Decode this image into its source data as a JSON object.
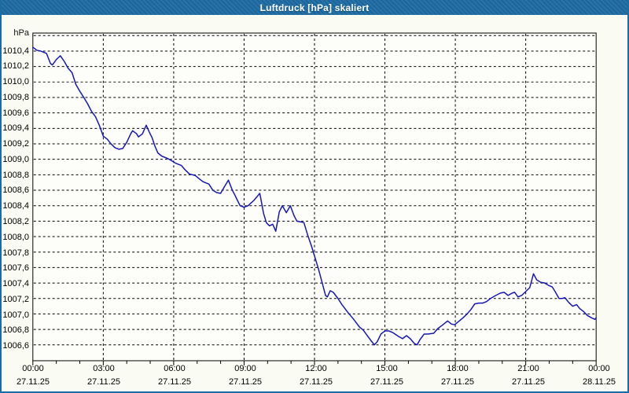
{
  "window": {
    "title": "Luftdruck [hPa] skaliert"
  },
  "colors": {
    "titlebar": "#1d6ba3",
    "window_border": "#1d6ba3",
    "window_bg": "#fafbf2",
    "plot_bg": "#fdfdfa",
    "grid": "#000000",
    "axis": "#000000",
    "curve": "#1616b6",
    "title_text": "#ffffff",
    "label_text": "#000000"
  },
  "chart_data": {
    "type": "line",
    "title": "Luftdruck [hPa] skaliert",
    "ylabel_unit": "hPa",
    "xlabel": "",
    "grid": true,
    "legend": "none",
    "xlim_hours": [
      0,
      24
    ],
    "ylim": [
      1006.395,
      1010.633
    ],
    "minor_tick_every_hours": 1,
    "y_ticks": [
      {
        "value": 1010.6,
        "label": ""
      },
      {
        "value": 1010.4,
        "label": "1010,4"
      },
      {
        "value": 1010.2,
        "label": "1010,2"
      },
      {
        "value": 1010.0,
        "label": "1010,0"
      },
      {
        "value": 1009.8,
        "label": "1009,8"
      },
      {
        "value": 1009.6,
        "label": "1009,6"
      },
      {
        "value": 1009.4,
        "label": "1009,4"
      },
      {
        "value": 1009.2,
        "label": "1009,2"
      },
      {
        "value": 1009.0,
        "label": "1009,0"
      },
      {
        "value": 1008.8,
        "label": "1008,8"
      },
      {
        "value": 1008.6,
        "label": "1008,6"
      },
      {
        "value": 1008.4,
        "label": "1008,4"
      },
      {
        "value": 1008.2,
        "label": "1008,2"
      },
      {
        "value": 1008.0,
        "label": "1008,0"
      },
      {
        "value": 1007.8,
        "label": "1007,8"
      },
      {
        "value": 1007.6,
        "label": "1007,6"
      },
      {
        "value": 1007.4,
        "label": "1007,4"
      },
      {
        "value": 1007.2,
        "label": "1007,2"
      },
      {
        "value": 1007.0,
        "label": "1007,0"
      },
      {
        "value": 1006.8,
        "label": "1006,8"
      },
      {
        "value": 1006.6,
        "label": "1006,6"
      }
    ],
    "x_ticks": [
      {
        "hour": 0,
        "time": "00:00",
        "date": "27.11.25"
      },
      {
        "hour": 3,
        "time": "03:00",
        "date": "27.11.25"
      },
      {
        "hour": 6,
        "time": "06:00",
        "date": "27.11.25"
      },
      {
        "hour": 9,
        "time": "09:00",
        "date": "27.11.25"
      },
      {
        "hour": 12,
        "time": "12:00",
        "date": "27.11.25"
      },
      {
        "hour": 15,
        "time": "15:00",
        "date": "27.11.25"
      },
      {
        "hour": 18,
        "time": "18:00",
        "date": "27.11.25"
      },
      {
        "hour": 21,
        "time": "21:00",
        "date": "27.11.25"
      },
      {
        "hour": 24,
        "time": "00:00",
        "date": "28.11.25"
      }
    ],
    "series": [
      {
        "name": "Luftdruck",
        "color": "#1616b6",
        "points": [
          [
            0.0,
            1010.45
          ],
          [
            0.17,
            1010.41
          ],
          [
            0.33,
            1010.4
          ],
          [
            0.58,
            1010.37
          ],
          [
            0.75,
            1010.24
          ],
          [
            0.83,
            1010.22
          ],
          [
            1.0,
            1010.29
          ],
          [
            1.17,
            1010.34
          ],
          [
            1.33,
            1010.27
          ],
          [
            1.5,
            1010.18
          ],
          [
            1.67,
            1010.12
          ],
          [
            1.83,
            1009.97
          ],
          [
            2.0,
            1009.88
          ],
          [
            2.17,
            1009.8
          ],
          [
            2.33,
            1009.72
          ],
          [
            2.5,
            1009.62
          ],
          [
            2.67,
            1009.55
          ],
          [
            2.83,
            1009.44
          ],
          [
            3.0,
            1009.3
          ],
          [
            3.17,
            1009.26
          ],
          [
            3.33,
            1009.2
          ],
          [
            3.5,
            1009.15
          ],
          [
            3.67,
            1009.13
          ],
          [
            3.83,
            1009.14
          ],
          [
            4.0,
            1009.22
          ],
          [
            4.17,
            1009.33
          ],
          [
            4.25,
            1009.37
          ],
          [
            4.42,
            1009.33
          ],
          [
            4.5,
            1009.29
          ],
          [
            4.67,
            1009.33
          ],
          [
            4.83,
            1009.44
          ],
          [
            4.95,
            1009.36
          ],
          [
            5.08,
            1009.28
          ],
          [
            5.2,
            1009.17
          ],
          [
            5.33,
            1009.08
          ],
          [
            5.5,
            1009.04
          ],
          [
            5.75,
            1009.01
          ],
          [
            5.92,
            1008.98
          ],
          [
            6.08,
            1008.95
          ],
          [
            6.33,
            1008.92
          ],
          [
            6.5,
            1008.86
          ],
          [
            6.67,
            1008.81
          ],
          [
            6.92,
            1008.79
          ],
          [
            7.08,
            1008.75
          ],
          [
            7.25,
            1008.71
          ],
          [
            7.5,
            1008.68
          ],
          [
            7.67,
            1008.6
          ],
          [
            7.83,
            1008.57
          ],
          [
            8.0,
            1008.56
          ],
          [
            8.17,
            1008.65
          ],
          [
            8.33,
            1008.73
          ],
          [
            8.5,
            1008.6
          ],
          [
            8.62,
            1008.53
          ],
          [
            8.7,
            1008.48
          ],
          [
            8.83,
            1008.4
          ],
          [
            9.0,
            1008.38
          ],
          [
            9.17,
            1008.4
          ],
          [
            9.42,
            1008.47
          ],
          [
            9.67,
            1008.56
          ],
          [
            9.83,
            1008.3
          ],
          [
            9.95,
            1008.18
          ],
          [
            10.08,
            1008.14
          ],
          [
            10.22,
            1008.16
          ],
          [
            10.35,
            1008.07
          ],
          [
            10.5,
            1008.32
          ],
          [
            10.63,
            1008.4
          ],
          [
            10.8,
            1008.31
          ],
          [
            10.97,
            1008.4
          ],
          [
            11.13,
            1008.27
          ],
          [
            11.25,
            1008.2
          ],
          [
            11.42,
            1008.19
          ],
          [
            11.55,
            1008.18
          ],
          [
            11.72,
            1008.01
          ],
          [
            11.87,
            1007.88
          ],
          [
            12.0,
            1007.75
          ],
          [
            12.17,
            1007.58
          ],
          [
            12.33,
            1007.4
          ],
          [
            12.47,
            1007.24
          ],
          [
            12.55,
            1007.22
          ],
          [
            12.67,
            1007.3
          ],
          [
            12.8,
            1007.28
          ],
          [
            13.0,
            1007.2
          ],
          [
            13.17,
            1007.12
          ],
          [
            13.42,
            1007.02
          ],
          [
            13.67,
            1006.93
          ],
          [
            13.92,
            1006.83
          ],
          [
            14.08,
            1006.79
          ],
          [
            14.25,
            1006.72
          ],
          [
            14.42,
            1006.65
          ],
          [
            14.55,
            1006.6
          ],
          [
            14.67,
            1006.64
          ],
          [
            14.83,
            1006.74
          ],
          [
            15.0,
            1006.78
          ],
          [
            15.17,
            1006.78
          ],
          [
            15.33,
            1006.76
          ],
          [
            15.58,
            1006.71
          ],
          [
            15.75,
            1006.68
          ],
          [
            15.92,
            1006.72
          ],
          [
            16.08,
            1006.68
          ],
          [
            16.25,
            1006.62
          ],
          [
            16.37,
            1006.6
          ],
          [
            16.5,
            1006.67
          ],
          [
            16.67,
            1006.74
          ],
          [
            16.83,
            1006.74
          ],
          [
            17.08,
            1006.75
          ],
          [
            17.25,
            1006.81
          ],
          [
            17.47,
            1006.86
          ],
          [
            17.67,
            1006.91
          ],
          [
            17.83,
            1006.87
          ],
          [
            17.97,
            1006.86
          ],
          [
            18.17,
            1006.91
          ],
          [
            18.33,
            1006.95
          ],
          [
            18.5,
            1007.0
          ],
          [
            18.67,
            1007.06
          ],
          [
            18.83,
            1007.13
          ],
          [
            19.0,
            1007.14
          ],
          [
            19.17,
            1007.14
          ],
          [
            19.33,
            1007.16
          ],
          [
            19.5,
            1007.2
          ],
          [
            19.67,
            1007.23
          ],
          [
            19.92,
            1007.27
          ],
          [
            20.08,
            1007.28
          ],
          [
            20.25,
            1007.24
          ],
          [
            20.42,
            1007.27
          ],
          [
            20.53,
            1007.28
          ],
          [
            20.67,
            1007.22
          ],
          [
            20.83,
            1007.24
          ],
          [
            21.0,
            1007.29
          ],
          [
            21.17,
            1007.34
          ],
          [
            21.33,
            1007.52
          ],
          [
            21.47,
            1007.44
          ],
          [
            21.63,
            1007.41
          ],
          [
            21.8,
            1007.4
          ],
          [
            21.97,
            1007.37
          ],
          [
            22.13,
            1007.35
          ],
          [
            22.25,
            1007.29
          ],
          [
            22.42,
            1007.2
          ],
          [
            22.55,
            1007.2
          ],
          [
            22.67,
            1007.21
          ],
          [
            22.83,
            1007.15
          ],
          [
            23.0,
            1007.1
          ],
          [
            23.17,
            1007.12
          ],
          [
            23.3,
            1007.07
          ],
          [
            23.47,
            1007.03
          ],
          [
            23.63,
            1006.98
          ],
          [
            23.8,
            1006.95
          ],
          [
            23.95,
            1006.93
          ],
          [
            24.0,
            1006.95
          ]
        ]
      }
    ]
  }
}
